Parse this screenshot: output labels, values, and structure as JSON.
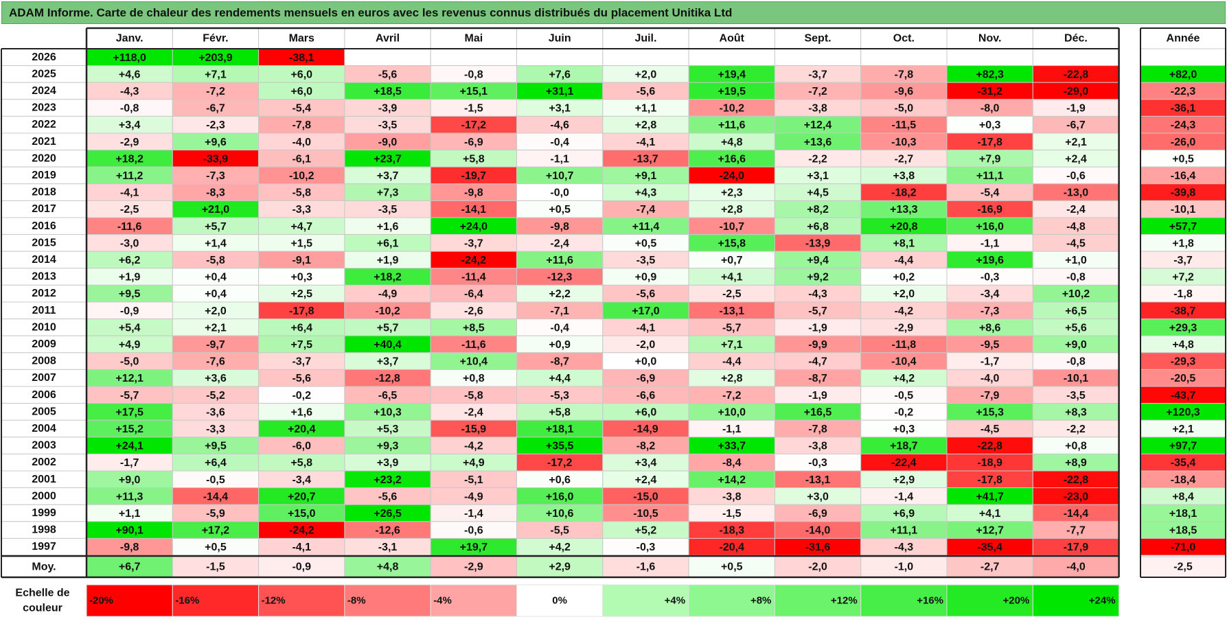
{
  "title": "ADAM Informe. Carte de chaleur des rendements mensuels en euros avec les revenus connus distribués du placement Unitika Ltd",
  "chart_data": {
    "type": "heatmap",
    "months": [
      "Janv.",
      "Févr.",
      "Mars",
      "Avril",
      "Mai",
      "Juin",
      "Juil.",
      "Août",
      "Sept.",
      "Oct.",
      "Nov.",
      "Déc."
    ],
    "year_header": "Année",
    "rows": [
      {
        "year": "2026",
        "months": [
          "+118,0",
          "+203,9",
          "-38,1",
          "",
          "",
          "",
          "",
          "",
          "",
          "",
          "",
          ""
        ],
        "annual": ""
      },
      {
        "year": "2025",
        "months": [
          "+4,6",
          "+7,1",
          "+6,0",
          "-5,6",
          "-0,8",
          "+7,6",
          "+2,0",
          "+19,4",
          "-3,7",
          "-7,8",
          "+82,3",
          "-22,8"
        ],
        "annual": "+82,0"
      },
      {
        "year": "2024",
        "months": [
          "-4,3",
          "-7,2",
          "+6,0",
          "+18,5",
          "+15,1",
          "+31,1",
          "-5,6",
          "+19,5",
          "-7,2",
          "-9,6",
          "-31,2",
          "-29,0"
        ],
        "annual": "-22,3"
      },
      {
        "year": "2023",
        "months": [
          "-0,8",
          "-6,7",
          "-5,4",
          "-3,9",
          "-1,5",
          "+3,1",
          "+1,1",
          "-10,2",
          "-3,8",
          "-5,0",
          "-8,0",
          "-1,9"
        ],
        "annual": "-36,1"
      },
      {
        "year": "2022",
        "months": [
          "+3,4",
          "-2,3",
          "-7,8",
          "-3,5",
          "-17,2",
          "-4,6",
          "+2,8",
          "+11,6",
          "+12,4",
          "-11,5",
          "+0,3",
          "-6,7"
        ],
        "annual": "-24,3"
      },
      {
        "year": "2021",
        "months": [
          "-2,9",
          "+9,6",
          "-4,0",
          "-9,0",
          "-6,9",
          "-0,4",
          "-4,1",
          "+4,8",
          "+13,6",
          "-10,3",
          "-17,8",
          "+2,1"
        ],
        "annual": "-26,0"
      },
      {
        "year": "2020",
        "months": [
          "+18,2",
          "-33,9",
          "-6,1",
          "+23,7",
          "+5,8",
          "-1,1",
          "-13,7",
          "+16,6",
          "-2,2",
          "-2,7",
          "+7,9",
          "+2,4"
        ],
        "annual": "+0,5"
      },
      {
        "year": "2019",
        "months": [
          "+11,2",
          "-7,3",
          "-10,2",
          "+3,7",
          "-19,7",
          "+10,7",
          "+9,1",
          "-24,0",
          "+3,1",
          "+3,8",
          "+11,1",
          "-0,6"
        ],
        "annual": "-16,4"
      },
      {
        "year": "2018",
        "months": [
          "-4,1",
          "-8,3",
          "-5,8",
          "+7,3",
          "-9,8",
          "-0,0",
          "+4,3",
          "+2,3",
          "+4,5",
          "-18,2",
          "-5,4",
          "-13,0"
        ],
        "annual": "-39,8"
      },
      {
        "year": "2017",
        "months": [
          "-2,5",
          "+21,0",
          "-3,3",
          "-3,5",
          "-14,1",
          "+0,5",
          "-7,4",
          "+2,8",
          "+8,2",
          "+13,3",
          "-16,9",
          "-2,4"
        ],
        "annual": "-10,1"
      },
      {
        "year": "2016",
        "months": [
          "-11,6",
          "+5,7",
          "+4,7",
          "+1,6",
          "+24,0",
          "-9,8",
          "+11,4",
          "-10,7",
          "+6,8",
          "+20,8",
          "+16,0",
          "-4,8"
        ],
        "annual": "+57,7"
      },
      {
        "year": "2015",
        "months": [
          "-3,0",
          "+1,4",
          "+1,5",
          "+6,1",
          "-3,7",
          "-2,4",
          "+0,5",
          "+15,8",
          "-13,9",
          "+8,1",
          "-1,1",
          "-4,5"
        ],
        "annual": "+1,8"
      },
      {
        "year": "2014",
        "months": [
          "+6,2",
          "-5,8",
          "-9,1",
          "+1,9",
          "-24,2",
          "+11,6",
          "-3,5",
          "+0,7",
          "+9,4",
          "-4,4",
          "+19,6",
          "+1,0"
        ],
        "annual": "-3,7"
      },
      {
        "year": "2013",
        "months": [
          "+1,9",
          "+0,4",
          "+0,3",
          "+18,2",
          "-11,4",
          "-12,3",
          "+0,9",
          "+4,1",
          "+9,2",
          "+0,2",
          "-0,3",
          "-0,8"
        ],
        "annual": "+7,2"
      },
      {
        "year": "2012",
        "months": [
          "+9,5",
          "+0,4",
          "+2,5",
          "-4,9",
          "-6,4",
          "+2,2",
          "-5,6",
          "-2,5",
          "-4,3",
          "+2,0",
          "-3,4",
          "+10,2"
        ],
        "annual": "-1,8"
      },
      {
        "year": "2011",
        "months": [
          "-0,9",
          "+2,0",
          "-17,8",
          "-10,2",
          "-2,6",
          "-7,1",
          "+17,0",
          "-13,1",
          "-5,7",
          "-4,2",
          "-7,3",
          "+6,5"
        ],
        "annual": "-38,7"
      },
      {
        "year": "2010",
        "months": [
          "+5,4",
          "+2,1",
          "+6,4",
          "+5,7",
          "+8,5",
          "-0,4",
          "-4,1",
          "-5,7",
          "-1,9",
          "-2,9",
          "+8,6",
          "+5,6"
        ],
        "annual": "+29,3"
      },
      {
        "year": "2009",
        "months": [
          "+4,9",
          "-9,7",
          "+7,5",
          "+40,4",
          "-11,6",
          "+0,9",
          "-2,0",
          "+7,1",
          "-9,9",
          "-11,8",
          "-9,5",
          "+9,0"
        ],
        "annual": "+4,8"
      },
      {
        "year": "2008",
        "months": [
          "-5,0",
          "-7,6",
          "-3,7",
          "+3,7",
          "+10,4",
          "-8,7",
          "+0,0",
          "-4,4",
          "-4,7",
          "-10,4",
          "-1,7",
          "-0,8"
        ],
        "annual": "-29,3"
      },
      {
        "year": "2007",
        "months": [
          "+12,1",
          "+3,6",
          "-5,6",
          "-12,8",
          "+0,8",
          "+4,4",
          "-6,9",
          "+2,8",
          "-8,7",
          "+4,2",
          "-4,0",
          "-10,1"
        ],
        "annual": "-20,5"
      },
      {
        "year": "2006",
        "months": [
          "-5,7",
          "-5,2",
          "-0,2",
          "-6,5",
          "-5,8",
          "-5,3",
          "-6,6",
          "-7,2",
          "-1,9",
          "-0,5",
          "-7,9",
          "-3,5"
        ],
        "annual": "-43,7"
      },
      {
        "year": "2005",
        "months": [
          "+17,5",
          "-3,6",
          "+1,6",
          "+10,3",
          "-2,4",
          "+5,8",
          "+6,0",
          "+10,0",
          "+16,5",
          "-0,2",
          "+15,3",
          "+8,3"
        ],
        "annual": "+120,3"
      },
      {
        "year": "2004",
        "months": [
          "+15,2",
          "-3,3",
          "+20,4",
          "+5,3",
          "-15,9",
          "+18,1",
          "-14,9",
          "-1,1",
          "-7,8",
          "+0,3",
          "-4,5",
          "-2,2"
        ],
        "annual": "+2,1"
      },
      {
        "year": "2003",
        "months": [
          "+24,1",
          "+9,5",
          "-6,0",
          "+9,3",
          "-4,2",
          "+35,5",
          "-8,2",
          "+33,7",
          "-3,8",
          "+18,7",
          "-22,8",
          "+0,8"
        ],
        "annual": "+97,7"
      },
      {
        "year": "2002",
        "months": [
          "-1,7",
          "+6,4",
          "+5,8",
          "+3,9",
          "+4,9",
          "-17,2",
          "+3,4",
          "-8,4",
          "-0,3",
          "-22,4",
          "-18,9",
          "+8,9"
        ],
        "annual": "-35,4"
      },
      {
        "year": "2001",
        "months": [
          "+9,0",
          "-0,5",
          "-3,4",
          "+23,2",
          "-5,1",
          "+0,6",
          "+2,4",
          "+14,2",
          "-13,1",
          "+2,9",
          "-17,8",
          "-22,8"
        ],
        "annual": "-18,4"
      },
      {
        "year": "2000",
        "months": [
          "+11,3",
          "-14,4",
          "+20,7",
          "-5,6",
          "-4,9",
          "+16,0",
          "-15,0",
          "-3,8",
          "+3,0",
          "-1,4",
          "+41,7",
          "-23,0"
        ],
        "annual": "+8,4"
      },
      {
        "year": "1999",
        "months": [
          "+1,1",
          "-5,9",
          "+15,0",
          "+26,5",
          "-1,4",
          "+10,6",
          "-10,5",
          "-1,5",
          "-6,9",
          "+6,9",
          "+4,1",
          "-14,4"
        ],
        "annual": "+18,1"
      },
      {
        "year": "1998",
        "months": [
          "+90,1",
          "+17,2",
          "-24,2",
          "-12,6",
          "-0,6",
          "-5,5",
          "+5,2",
          "-18,3",
          "-14,0",
          "+11,1",
          "+12,7",
          "-7,7"
        ],
        "annual": "+18,5"
      },
      {
        "year": "1997",
        "months": [
          "-9,8",
          "+0,5",
          "-4,1",
          "-3,1",
          "+19,7",
          "+4,2",
          "-0,3",
          "-20,4",
          "-31,6",
          "-4,3",
          "-35,4",
          "-17,9"
        ],
        "annual": "-71,0"
      }
    ],
    "average": {
      "label": "Moy.",
      "months": [
        "+6,7",
        "-1,5",
        "-0,9",
        "+4,8",
        "-2,9",
        "+2,9",
        "-1,6",
        "+0,5",
        "-2,0",
        "-1,0",
        "-2,7",
        "-4,0"
      ],
      "annual": "-2,5"
    },
    "legend": {
      "label_line1": "Echelle de",
      "label_line2": "couleur",
      "stops": [
        "-20%",
        "-16%",
        "-12%",
        "-8%",
        "-4%",
        "0%",
        "+4%",
        "+8%",
        "+12%",
        "+16%",
        "+20%",
        "+24%"
      ],
      "values": [
        -20,
        -16,
        -12,
        -8,
        -4,
        0,
        4,
        8,
        12,
        16,
        20,
        24
      ]
    },
    "colors": {
      "negative_max": "#ff0000",
      "neutral": "#ffffff",
      "positive_max": "#00e000",
      "title_bg": "#7bc67e"
    }
  }
}
